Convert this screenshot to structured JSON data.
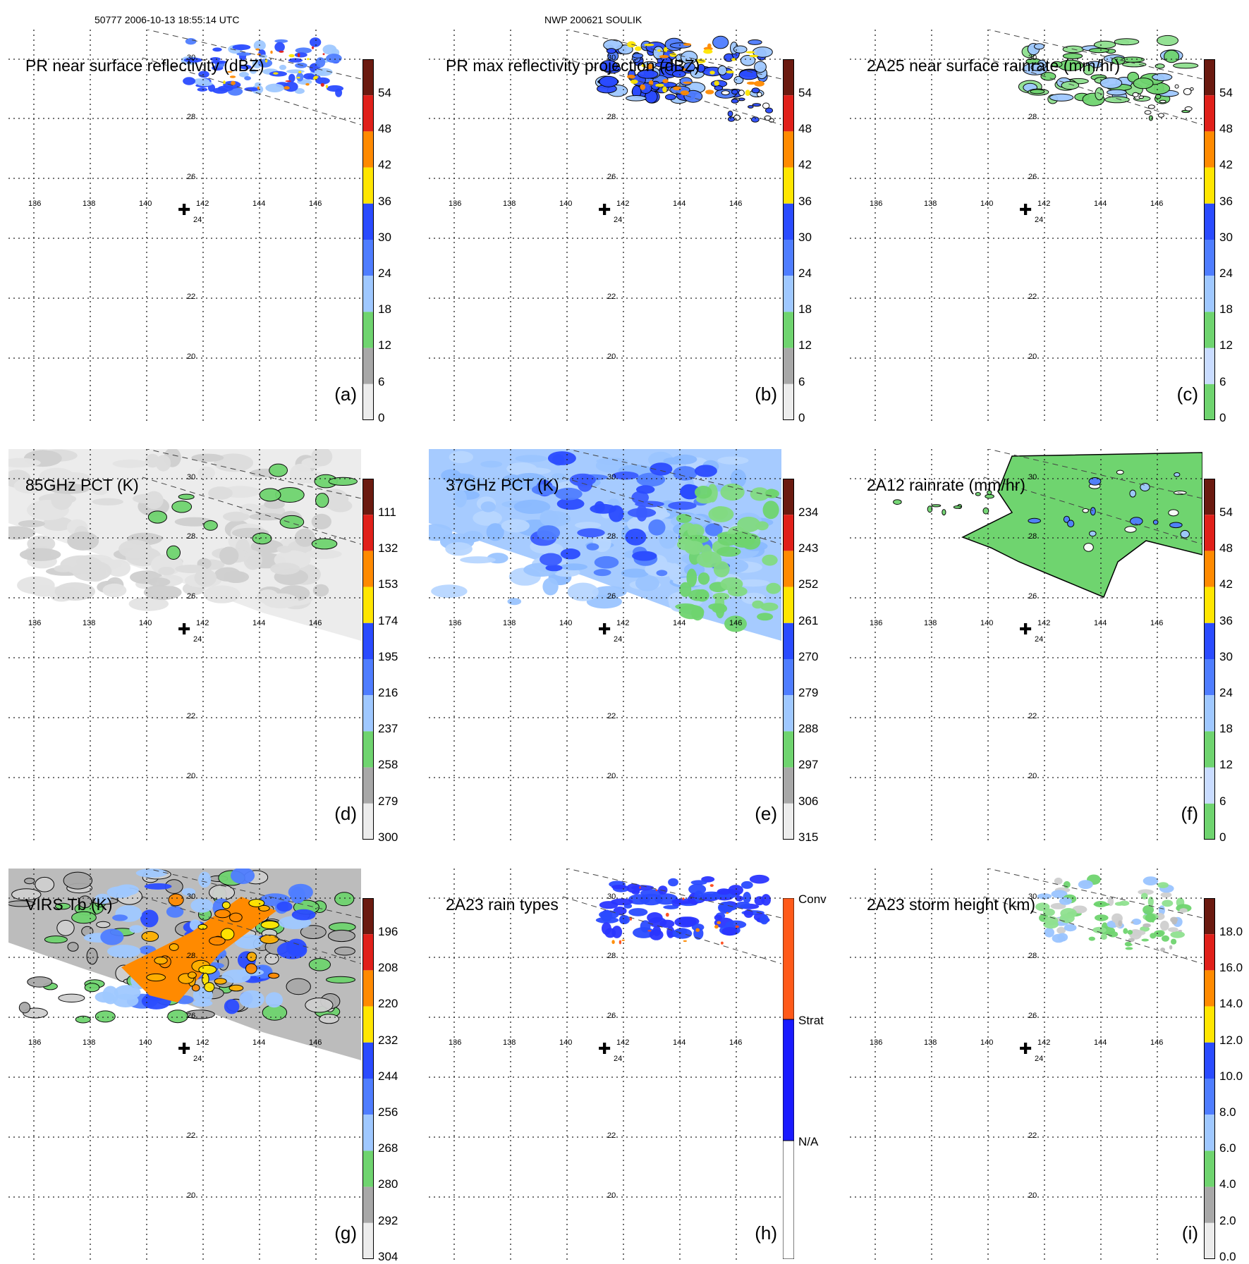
{
  "header": {
    "overpass": "50777 2006-10-13 18:55:14 UTC",
    "storm": "NWP 200621 SOULIK"
  },
  "map": {
    "lon_labels": [
      "136",
      "138",
      "140",
      "142",
      "144",
      "146"
    ],
    "lat_labels": [
      "30",
      "28",
      "26",
      "24",
      "22",
      "20"
    ],
    "storm_center_label": "24"
  },
  "colors": {
    "gray": "#bdbdbd",
    "green": "#6fd46f",
    "lightblue": "#9fc8ff",
    "blue": "#2a4bff",
    "yellow": "#ffe600",
    "orange": "#ff8a00",
    "red": "#e0201a",
    "darkred": "#6b1a10"
  },
  "panels": [
    {
      "id": "a",
      "title": "PR near surface reflectivity (dBZ)",
      "label": "(a)",
      "colorbar": [
        "54",
        "48",
        "42",
        "36",
        "30",
        "24",
        "18",
        "12",
        "6",
        "0"
      ]
    },
    {
      "id": "b",
      "title": "PR max reflectivity projection (dBZ)",
      "label": "(b)",
      "colorbar": [
        "54",
        "48",
        "42",
        "36",
        "30",
        "24",
        "18",
        "12",
        "6",
        "0"
      ]
    },
    {
      "id": "c",
      "title": "2A25 near surface rainrate (mm/hr)",
      "label": "(c)",
      "colorbar": [
        "54",
        "48",
        "42",
        "36",
        "30",
        "24",
        "18",
        "12",
        "6",
        "0"
      ]
    },
    {
      "id": "d",
      "title": "85GHz PCT (K)",
      "label": "(d)",
      "colorbar": [
        "111",
        "132",
        "153",
        "174",
        "195",
        "216",
        "237",
        "258",
        "279",
        "300"
      ]
    },
    {
      "id": "e",
      "title": "37GHz PCT (K)",
      "label": "(e)",
      "colorbar": [
        "234",
        "243",
        "252",
        "261",
        "270",
        "279",
        "288",
        "297",
        "306",
        "315"
      ]
    },
    {
      "id": "f",
      "title": "2A12 rainrate (mm/hr)",
      "label": "(f)",
      "colorbar": [
        "54",
        "48",
        "42",
        "36",
        "30",
        "24",
        "18",
        "12",
        "6",
        "0"
      ]
    },
    {
      "id": "g",
      "title": "VIRS Tb (K)",
      "label": "(g)",
      "colorbar": [
        "196",
        "208",
        "220",
        "232",
        "244",
        "256",
        "268",
        "280",
        "292",
        "304"
      ]
    },
    {
      "id": "h",
      "title": "2A23 rain types",
      "label": "(h)",
      "colorbar": [
        "Conv",
        "Strat",
        "N/A"
      ]
    },
    {
      "id": "i",
      "title": "2A23 storm height (km)",
      "label": "(i)",
      "colorbar": [
        "18.0",
        "16.0",
        "14.0",
        "12.0",
        "10.0",
        "8.0",
        "6.0",
        "4.0",
        "2.0",
        "0.0"
      ]
    }
  ]
}
